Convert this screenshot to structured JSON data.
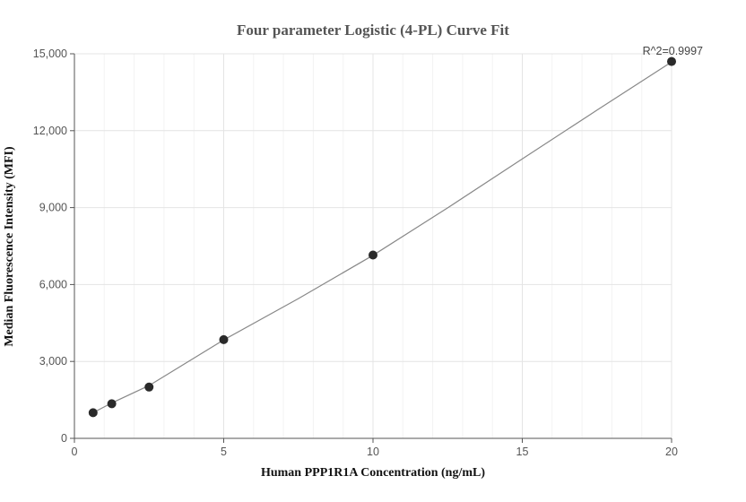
{
  "chart_data": {
    "type": "scatter",
    "title": "Four parameter Logistic (4-PL) Curve Fit",
    "xlabel": "Human PPP1R1A Concentration (ng/mL)",
    "ylabel": "Median Fluorescence Intensity (MFI)",
    "xlim": [
      0,
      20
    ],
    "ylim": [
      0,
      15000
    ],
    "x_ticks": [
      0,
      5,
      10,
      15,
      20
    ],
    "x_tick_labels": [
      "0",
      "5",
      "10",
      "15",
      "20"
    ],
    "y_ticks": [
      0,
      3000,
      6000,
      9000,
      12000,
      15000
    ],
    "y_tick_labels": [
      "0",
      "3,000",
      "6,000",
      "9,000",
      "12,000",
      "15,000"
    ],
    "grid": true,
    "series": [
      {
        "points": [
          {
            "x": 0.625,
            "y": 1000
          },
          {
            "x": 1.25,
            "y": 1350
          },
          {
            "x": 2.5,
            "y": 2000
          },
          {
            "x": 5,
            "y": 3850
          },
          {
            "x": 10,
            "y": 7150
          },
          {
            "x": 20,
            "y": 14700
          }
        ],
        "color": "#2a2a2a"
      }
    ],
    "fit_curve": {
      "model": "4-PL",
      "color": "#888888",
      "points": [
        {
          "x": 0.625,
          "y": 1000
        },
        {
          "x": 1.25,
          "y": 1380
        },
        {
          "x": 2.5,
          "y": 2060
        },
        {
          "x": 5,
          "y": 3840
        },
        {
          "x": 7.5,
          "y": 5450
        },
        {
          "x": 10,
          "y": 7140
        },
        {
          "x": 12.5,
          "y": 8990
        },
        {
          "x": 15,
          "y": 10900
        },
        {
          "x": 17.5,
          "y": 12800
        },
        {
          "x": 20,
          "y": 14680
        }
      ]
    },
    "annotation": "R^2=0.9997"
  }
}
